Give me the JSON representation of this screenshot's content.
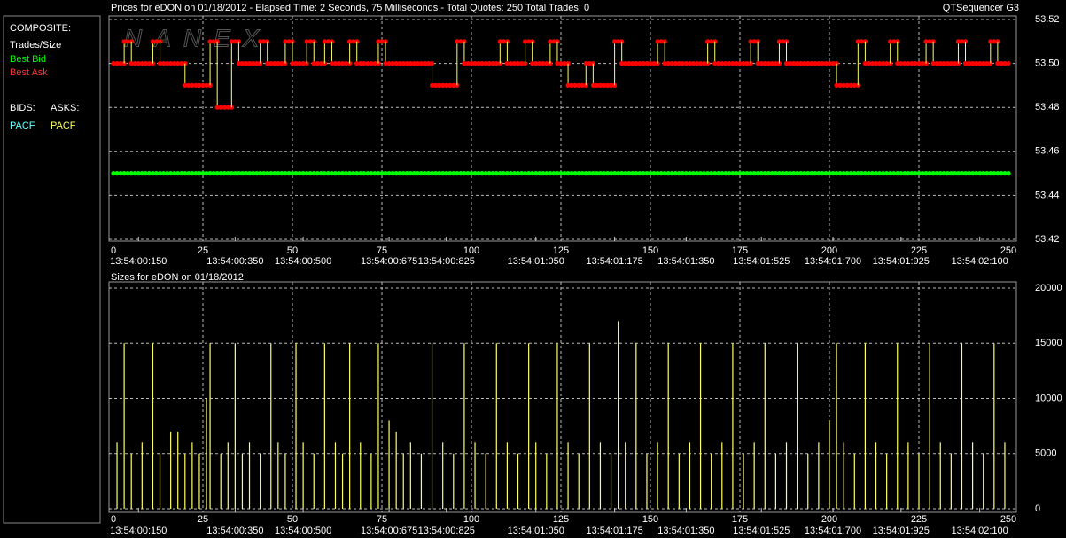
{
  "legend_panel": {
    "composite": "COMPOSITE:",
    "trades": "Trades/Size",
    "bids": "BIDS:",
    "asks": "ASKS:",
    "bid_exchange": "PACF",
    "ask_exchange": "PACF"
  },
  "chart_data": [
    {
      "type": "step",
      "title": "Prices for  eDON  on  01/18/2012  -  Elapsed Time: 2 Seconds, 75 Milliseconds  -  Total Quotes: 250  Total Trades: 0",
      "title_right": "QTSequencer G3",
      "watermark": "NANEX",
      "xlim": [
        0,
        250
      ],
      "xticks": [
        0,
        25,
        50,
        75,
        100,
        125,
        150,
        175,
        200,
        225,
        250
      ],
      "time_ticks": [
        {
          "value": 7,
          "label": "13:54:00:150"
        },
        {
          "value": 34,
          "label": "13:54:00:350"
        },
        {
          "value": 53,
          "label": "13:54:00:500"
        },
        {
          "value": 77,
          "label": "13:54:00:675"
        },
        {
          "value": 93,
          "label": "13:54:00:825"
        },
        {
          "value": 118,
          "label": "13:54:01:050"
        },
        {
          "value": 140,
          "label": "13:54:01:175"
        },
        {
          "value": 160,
          "label": "13:54:01:350"
        },
        {
          "value": 181,
          "label": "13:54:01:525"
        },
        {
          "value": 201,
          "label": "13:54:01:700"
        },
        {
          "value": 220,
          "label": "13:54:01:925"
        },
        {
          "value": 242,
          "label": "13:54:02:100"
        }
      ],
      "ylim": [
        53.42,
        53.52
      ],
      "yticks": [
        53.42,
        53.44,
        53.46,
        53.48,
        {
          "value": 53.5,
          "label": "53.50"
        },
        53.52
      ],
      "grid": true,
      "series": [
        {
          "name": "Best Bid",
          "color": "#00ff00",
          "x": [
            0,
            250
          ],
          "values": [
            53.45,
            53.45
          ]
        },
        {
          "name": "Best Ask",
          "color": "#ff0000",
          "connector_color": "#ffff66",
          "x": [
            0,
            3,
            5,
            11,
            13,
            20,
            27,
            29,
            33,
            35,
            41,
            43,
            48,
            50,
            54,
            56,
            59,
            61,
            66,
            68,
            74,
            76,
            89,
            96,
            98,
            108,
            110,
            115,
            117,
            122,
            124,
            127,
            132,
            134,
            140,
            142,
            152,
            154,
            166,
            168,
            178,
            180,
            186,
            188,
            202,
            208,
            210,
            217,
            219,
            227,
            229,
            236,
            238,
            245,
            247
          ],
          "values": [
            53.5,
            53.51,
            53.5,
            53.51,
            53.5,
            53.49,
            53.51,
            53.48,
            53.51,
            53.5,
            53.51,
            53.5,
            53.51,
            53.5,
            53.51,
            53.5,
            53.51,
            53.5,
            53.51,
            53.5,
            53.51,
            53.5,
            53.49,
            53.51,
            53.5,
            53.51,
            53.5,
            53.51,
            53.5,
            53.51,
            53.5,
            53.49,
            53.5,
            53.49,
            53.51,
            53.5,
            53.51,
            53.5,
            53.51,
            53.5,
            53.51,
            53.5,
            53.51,
            53.5,
            53.49,
            53.51,
            53.5,
            53.51,
            53.5,
            53.51,
            53.5,
            53.51,
            53.5,
            53.51,
            53.5
          ]
        }
      ]
    },
    {
      "type": "bar",
      "title": "Sizes for  eDON  on  01/18/2012",
      "color": "#ffff66",
      "xlim": [
        0,
        250
      ],
      "xticks": [
        0,
        25,
        50,
        75,
        100,
        125,
        150,
        175,
        200,
        225,
        250
      ],
      "time_ticks": [
        {
          "value": 7,
          "label": "13:54:00:150"
        },
        {
          "value": 34,
          "label": "13:54:00:350"
        },
        {
          "value": 53,
          "label": "13:54:00:500"
        },
        {
          "value": 77,
          "label": "13:54:00:675"
        },
        {
          "value": 93,
          "label": "13:54:00:825"
        },
        {
          "value": 118,
          "label": "13:54:01:050"
        },
        {
          "value": 140,
          "label": "13:54:01:175"
        },
        {
          "value": 160,
          "label": "13:54:01:350"
        },
        {
          "value": 181,
          "label": "13:54:01:525"
        },
        {
          "value": 201,
          "label": "13:54:01:700"
        },
        {
          "value": 220,
          "label": "13:54:01:925"
        },
        {
          "value": 242,
          "label": "13:54:02:100"
        }
      ],
      "ylim": [
        0,
        20000
      ],
      "yticks": [
        0,
        5000,
        10000,
        15000,
        20000
      ],
      "grid": true,
      "x": [
        1,
        3,
        5,
        8,
        11,
        13,
        16,
        18,
        20,
        22,
        24,
        26,
        27,
        30,
        32,
        34,
        36,
        38,
        41,
        44,
        46,
        48,
        51,
        53,
        56,
        59,
        62,
        64,
        66,
        69,
        72,
        74,
        77,
        79,
        81,
        83,
        86,
        89,
        92,
        95,
        98,
        101,
        104,
        107,
        110,
        113,
        116,
        118,
        121,
        124,
        127,
        130,
        133,
        136,
        139,
        141,
        143,
        146,
        149,
        152,
        155,
        158,
        161,
        164,
        167,
        170,
        173,
        176,
        179,
        182,
        185,
        188,
        191,
        194,
        197,
        200,
        202,
        204,
        207,
        210,
        213,
        216,
        219,
        222,
        225,
        228,
        231,
        234,
        237,
        240,
        243,
        246,
        249
      ],
      "values": [
        6000,
        15000,
        5000,
        6000,
        15000,
        5000,
        7000,
        7000,
        5000,
        6000,
        5000,
        10000,
        15000,
        5000,
        6000,
        15000,
        5000,
        6000,
        5000,
        15000,
        6000,
        5000,
        15000,
        6000,
        5000,
        15000,
        6000,
        5000,
        15000,
        6000,
        5000,
        15000,
        8000,
        7000,
        5000,
        6000,
        5000,
        15000,
        6000,
        5000,
        15000,
        6000,
        5000,
        15000,
        6000,
        5000,
        15000,
        6000,
        5000,
        15000,
        6000,
        5000,
        15000,
        6000,
        5000,
        17000,
        6000,
        15000,
        5000,
        6000,
        15000,
        5000,
        6000,
        15000,
        5000,
        6000,
        15000,
        5000,
        6000,
        15000,
        5000,
        6000,
        15000,
        5000,
        6000,
        8000,
        15000,
        6000,
        5000,
        15000,
        6000,
        5000,
        15000,
        6000,
        5000,
        15000,
        6000,
        5000,
        15000,
        6000,
        5000,
        15000,
        6000
      ]
    }
  ]
}
